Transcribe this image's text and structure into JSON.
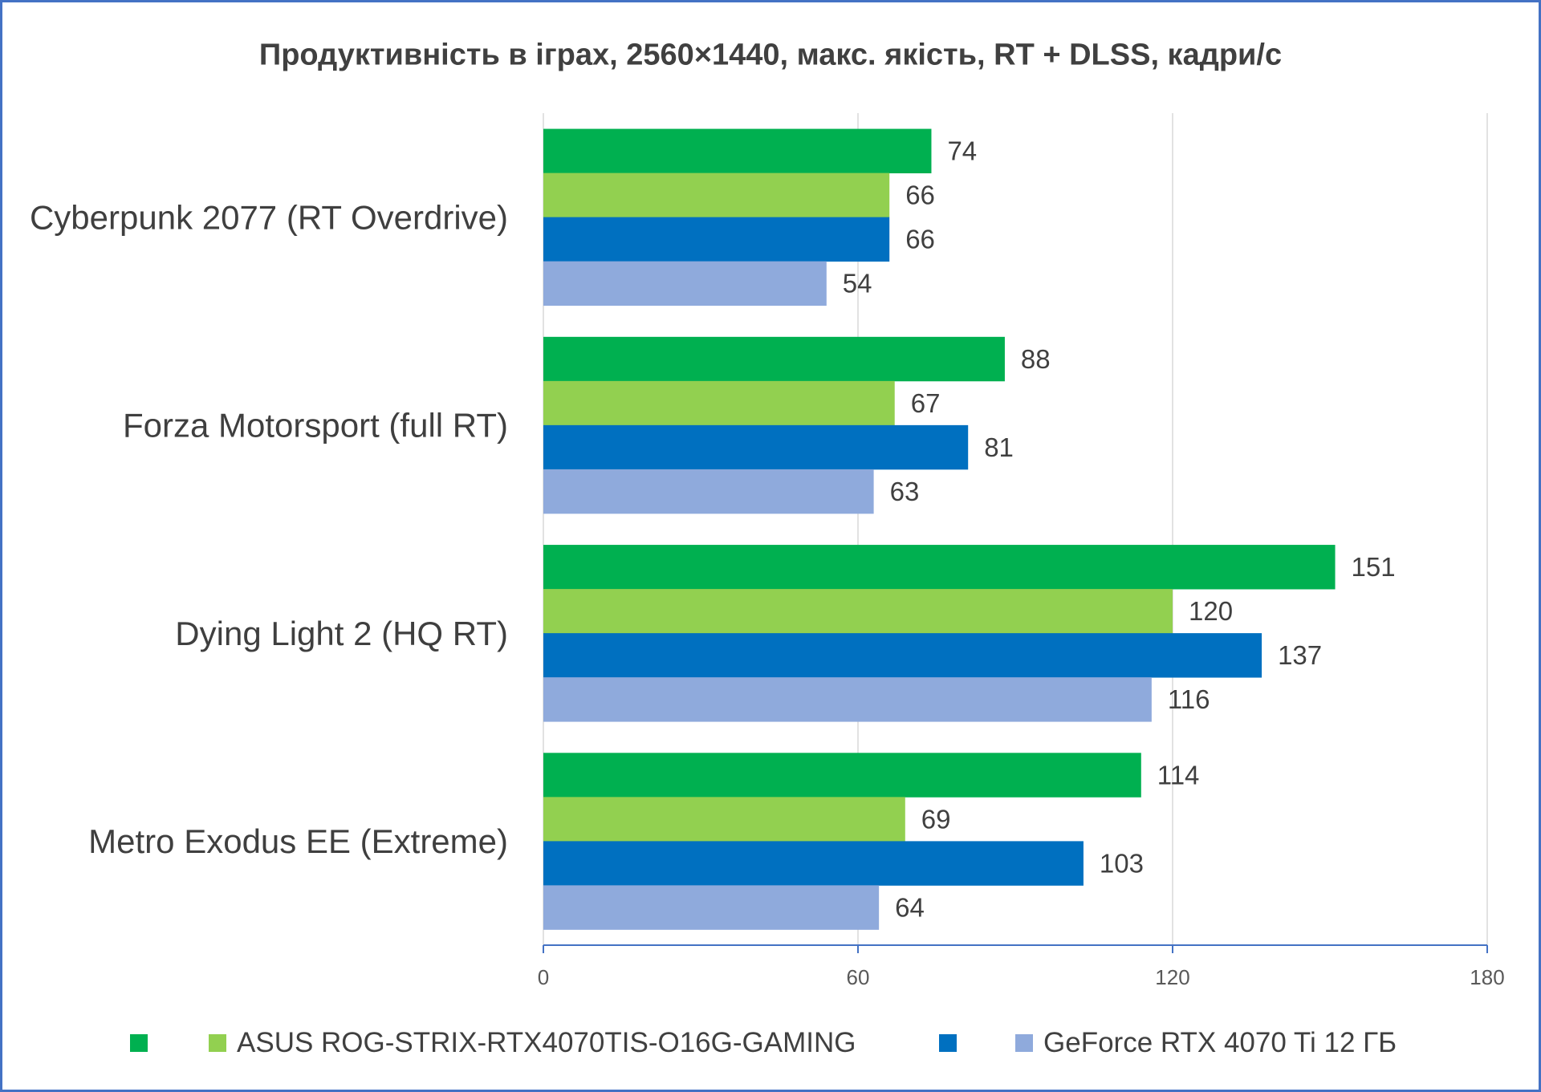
{
  "chart_data": {
    "type": "bar",
    "orientation": "horizontal",
    "title": "Продуктивність в іграх, 2560×1440, макс. якість, RT + DLSS, кадри/с",
    "categories": [
      "Cyberpunk 2077 (RT Overdrive)",
      "Forza Motorsport (full RT)",
      "Dying Light 2 (HQ RT)",
      "Metro Exodus EE (Extreme)"
    ],
    "series": [
      {
        "name": "",
        "color": "#00B050",
        "values": [
          74,
          88,
          151,
          114
        ]
      },
      {
        "name": "ASUS ROG-STRIX-RTX4070TIS-O16G-GAMING",
        "color": "#92D050",
        "values": [
          66,
          67,
          120,
          69
        ]
      },
      {
        "name": "",
        "color": "#0070C0",
        "values": [
          66,
          81,
          137,
          103
        ]
      },
      {
        "name": "GeForce RTX 4070 Ti 12 ГБ",
        "color": "#8FAADC",
        "values": [
          54,
          63,
          116,
          64
        ]
      }
    ],
    "xlim": [
      0,
      180
    ],
    "xticks": [
      0,
      60,
      120,
      180
    ],
    "grid": true,
    "legend_position": "bottom"
  }
}
